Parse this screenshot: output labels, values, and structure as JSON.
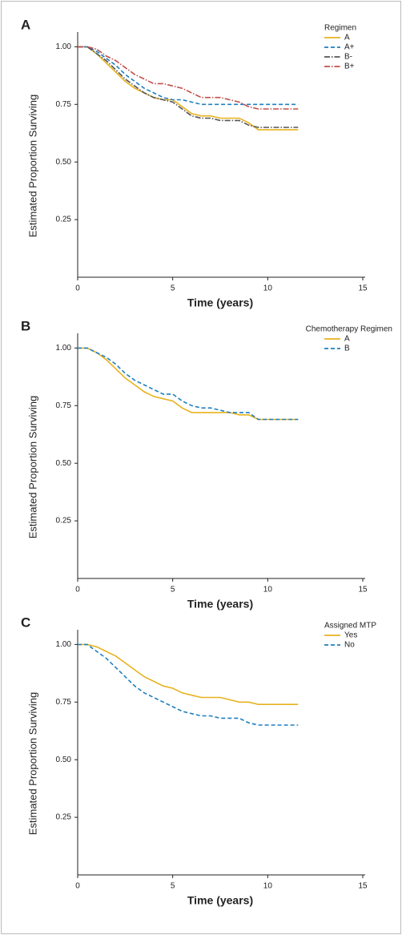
{
  "chart_data": [
    {
      "type": "line",
      "panel": "A",
      "xlabel": "Time (years)",
      "ylabel": "Estimated Proportion Surviving",
      "legend_title": "Regimen",
      "legend": "upper right",
      "xlim": [
        0,
        15
      ],
      "xticks": [
        0,
        5,
        10,
        15
      ],
      "ylim": [
        0,
        1.05
      ],
      "yticks": [
        0.25,
        {
          "value": 0.5,
          "label": "0.50"
        },
        0.75,
        {
          "value": 1,
          "label": "1.00"
        }
      ],
      "x": [
        0,
        0.5,
        1,
        1.5,
        2,
        2.5,
        3,
        3.5,
        4,
        4.5,
        5,
        5.5,
        6,
        6.5,
        7,
        7.5,
        8,
        8.5,
        9,
        9.5,
        10,
        10.5,
        11,
        11.6
      ],
      "series": [
        {
          "name": "A",
          "color": "#e8b21e",
          "dash": "solid",
          "values": [
            1,
            1,
            0.97,
            0.93,
            0.89,
            0.85,
            0.82,
            0.8,
            0.78,
            0.77,
            0.77,
            0.74,
            0.71,
            0.7,
            0.7,
            0.69,
            0.69,
            0.69,
            0.67,
            0.64,
            0.64,
            0.64,
            0.64,
            0.64
          ]
        },
        {
          "name": "A+",
          "color": "#1f7fc0",
          "dash": "dashed",
          "values": [
            1,
            1,
            0.98,
            0.95,
            0.92,
            0.88,
            0.85,
            0.82,
            0.8,
            0.78,
            0.77,
            0.77,
            0.76,
            0.75,
            0.75,
            0.75,
            0.75,
            0.75,
            0.75,
            0.75,
            0.75,
            0.75,
            0.75,
            0.75
          ]
        },
        {
          "name": "B-",
          "color": "#555555",
          "dash": "dashdot",
          "values": [
            1,
            1,
            0.97,
            0.94,
            0.9,
            0.86,
            0.83,
            0.8,
            0.78,
            0.77,
            0.76,
            0.73,
            0.7,
            0.69,
            0.69,
            0.68,
            0.68,
            0.68,
            0.66,
            0.65,
            0.65,
            0.65,
            0.65,
            0.65
          ]
        },
        {
          "name": "B+",
          "color": "#c0504d",
          "dash": "dashdot",
          "values": [
            1,
            1,
            0.99,
            0.96,
            0.94,
            0.91,
            0.88,
            0.86,
            0.84,
            0.84,
            0.83,
            0.82,
            0.8,
            0.78,
            0.78,
            0.78,
            0.77,
            0.76,
            0.74,
            0.73,
            0.73,
            0.73,
            0.73,
            0.73
          ]
        }
      ]
    },
    {
      "type": "line",
      "panel": "B",
      "xlabel": "Time (years)",
      "ylabel": "Estimated Proportion Surviving",
      "legend_title": "Chemotherapy Regimen",
      "legend": "upper right",
      "xlim": [
        0,
        15
      ],
      "xticks": [
        0,
        5,
        10,
        15
      ],
      "ylim": [
        0,
        1.05
      ],
      "yticks": [
        0.25,
        {
          "value": 0.5,
          "label": "0.50"
        },
        0.75,
        {
          "value": 1,
          "label": "1.00"
        }
      ],
      "x": [
        0,
        0.5,
        1,
        1.5,
        2,
        2.5,
        3,
        3.5,
        4,
        4.5,
        5,
        5.5,
        6,
        6.5,
        7,
        7.5,
        8,
        8.5,
        9,
        9.5,
        10,
        10.5,
        11,
        11.6
      ],
      "series": [
        {
          "name": "A",
          "color": "#e8b21e",
          "dash": "solid",
          "values": [
            1,
            1,
            0.98,
            0.95,
            0.91,
            0.87,
            0.84,
            0.81,
            0.79,
            0.78,
            0.77,
            0.74,
            0.72,
            0.72,
            0.72,
            0.72,
            0.72,
            0.71,
            0.71,
            0.69,
            0.69,
            0.69,
            0.69,
            0.69
          ]
        },
        {
          "name": "B",
          "color": "#1f7fc0",
          "dash": "dashed",
          "values": [
            1,
            1,
            0.98,
            0.96,
            0.93,
            0.89,
            0.86,
            0.84,
            0.82,
            0.8,
            0.8,
            0.77,
            0.75,
            0.74,
            0.74,
            0.73,
            0.72,
            0.72,
            0.72,
            0.69,
            0.69,
            0.69,
            0.69,
            0.69
          ]
        }
      ]
    },
    {
      "type": "line",
      "panel": "C",
      "xlabel": "Time (years)",
      "ylabel": "Estimated Proportion Surviving",
      "legend_title": "Assigned MTP",
      "legend": "upper right",
      "xlim": [
        0,
        15
      ],
      "xticks": [
        0,
        5,
        10,
        15
      ],
      "ylim": [
        0,
        1.05
      ],
      "yticks": [
        0.25,
        {
          "value": 0.5,
          "label": "0.50"
        },
        0.75,
        {
          "value": 1,
          "label": "1.00"
        }
      ],
      "x": [
        0,
        0.5,
        1,
        1.5,
        2,
        2.5,
        3,
        3.5,
        4,
        4.5,
        5,
        5.5,
        6,
        6.5,
        7,
        7.5,
        8,
        8.5,
        9,
        9.5,
        10,
        10.5,
        11,
        11.6
      ],
      "series": [
        {
          "name": "Yes",
          "color": "#e8b21e",
          "dash": "solid",
          "values": [
            1,
            1,
            0.99,
            0.97,
            0.95,
            0.92,
            0.89,
            0.86,
            0.84,
            0.82,
            0.81,
            0.79,
            0.78,
            0.77,
            0.77,
            0.77,
            0.76,
            0.75,
            0.75,
            0.74,
            0.74,
            0.74,
            0.74,
            0.74
          ]
        },
        {
          "name": "No",
          "color": "#1f7fc0",
          "dash": "dashed",
          "values": [
            1,
            1,
            0.97,
            0.94,
            0.9,
            0.86,
            0.82,
            0.79,
            0.77,
            0.75,
            0.73,
            0.71,
            0.7,
            0.69,
            0.69,
            0.68,
            0.68,
            0.68,
            0.66,
            0.65,
            0.65,
            0.65,
            0.65,
            0.65
          ]
        }
      ]
    }
  ]
}
